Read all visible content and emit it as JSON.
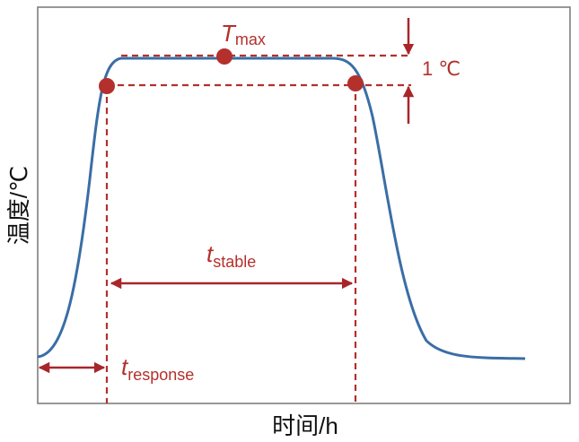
{
  "axes": {
    "y_label": "温度/℃",
    "x_label": "时间/h"
  },
  "annotations": {
    "t_max": {
      "symbol": "T",
      "subscript": "max"
    },
    "delta": "1 ℃",
    "t_stable": {
      "symbol": "t",
      "subscript": "stable"
    },
    "t_response": {
      "symbol": "t",
      "subscript": "response"
    }
  }
}
